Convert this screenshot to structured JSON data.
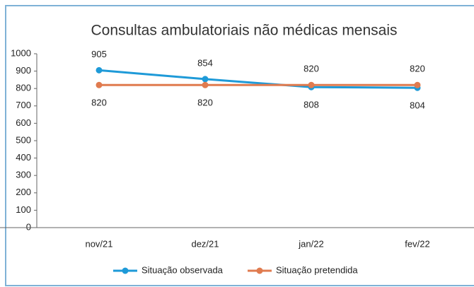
{
  "chart_data": {
    "type": "line",
    "title": "Consultas ambulatoriais não médicas mensais",
    "categories": [
      "nov/21",
      "dez/21",
      "jan/22",
      "fev/22"
    ],
    "series": [
      {
        "name": "Situação observada",
        "color": "#1e9ad8",
        "values": [
          905,
          854,
          808,
          804
        ]
      },
      {
        "name": "Situação pretendida",
        "color": "#e07b4f",
        "values": [
          820,
          820,
          820,
          820
        ]
      }
    ],
    "ylim": [
      0,
      1000
    ],
    "yticks": [
      0,
      100,
      200,
      300,
      400,
      500,
      600,
      700,
      800,
      900,
      1000
    ],
    "legend": "bottom"
  }
}
